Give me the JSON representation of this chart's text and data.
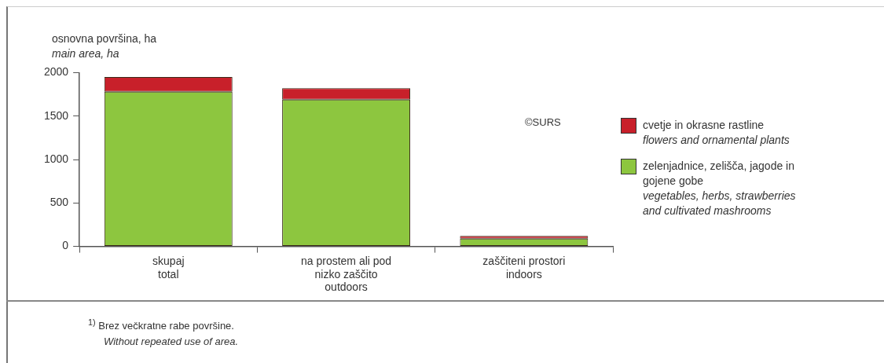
{
  "chart_data": {
    "type": "bar",
    "stacked": true,
    "ylabel": "osnovna površina, ha\nmain area, ha",
    "categories": [
      "skupaj\ntotal",
      "na prostem ali pod\nnizko zaščito\noutdoors",
      "zaščiteni prostori\nindoors"
    ],
    "series": [
      {
        "name": "zelenjadnice, zelišča, jagode in\ngojene gobe\nvegetables, herbs, strawberries\nand cultivated mashrooms",
        "color": "#8dc63f",
        "values": [
          1780,
          1690,
          90
        ]
      },
      {
        "name": "cvetje in okrasne rastline\nflowers and ornamental plants",
        "color": "#c8202a",
        "values": [
          170,
          130,
          30
        ]
      }
    ],
    "ylim": [
      0,
      2000
    ],
    "yticks": [
      0,
      500,
      1000,
      1500,
      2000
    ],
    "grid": false,
    "legend": "right",
    "annotations": [
      "©SURS",
      "$^{1)}$ Brez večkratne rabe površine.\nWithout repeated use of area."
    ]
  }
}
